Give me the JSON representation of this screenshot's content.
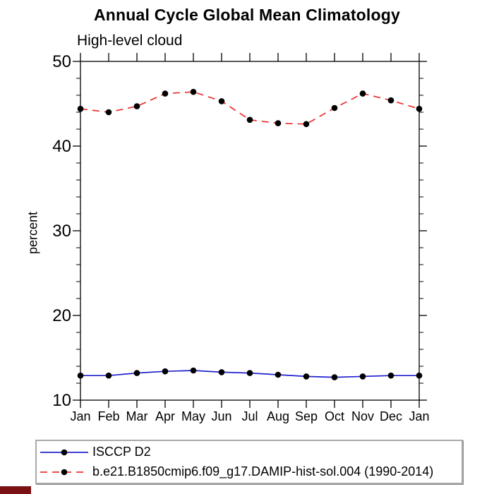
{
  "title": "Annual Cycle Global Mean Climatology",
  "subtitle": "High-level cloud",
  "chart_data": {
    "type": "line",
    "x_categories": [
      "Jan",
      "Feb",
      "Mar",
      "Apr",
      "May",
      "Jun",
      "Jul",
      "Aug",
      "Sep",
      "Oct",
      "Nov",
      "Dec",
      "Jan"
    ],
    "ylabel": "percent",
    "ylim": [
      10,
      50
    ],
    "yticks_major": [
      10,
      20,
      30,
      40,
      50
    ],
    "ytick_minor_step": 2,
    "grid": false,
    "legend_position": "bottom-left-box",
    "frame": "full-box-outward-ticks",
    "series": [
      {
        "name": "ISCCP D2",
        "line_style": "solid",
        "line_color": "#2222cc",
        "marker": "filled-circle",
        "marker_color": "#000000",
        "values": [
          12.9,
          12.9,
          13.2,
          13.4,
          13.5,
          13.3,
          13.2,
          13.0,
          12.8,
          12.7,
          12.8,
          12.9,
          12.9
        ]
      },
      {
        "name": "b.e21.B1850cmip6.f09_g17.DAMIP-hist-sol.004 (1990-2014)",
        "line_style": "dashed",
        "line_color": "#ee3030",
        "marker": "filled-circle",
        "marker_color": "#000000",
        "values": [
          44.4,
          44.0,
          44.7,
          46.2,
          46.4,
          45.3,
          43.1,
          42.7,
          42.6,
          44.5,
          46.2,
          45.4,
          44.4
        ]
      }
    ]
  },
  "colors": {
    "background": "#ffffff",
    "axis": "#000000",
    "text": "#000000",
    "legend_border": "#a9a9a9",
    "bottom_bar": "#7b1114"
  }
}
